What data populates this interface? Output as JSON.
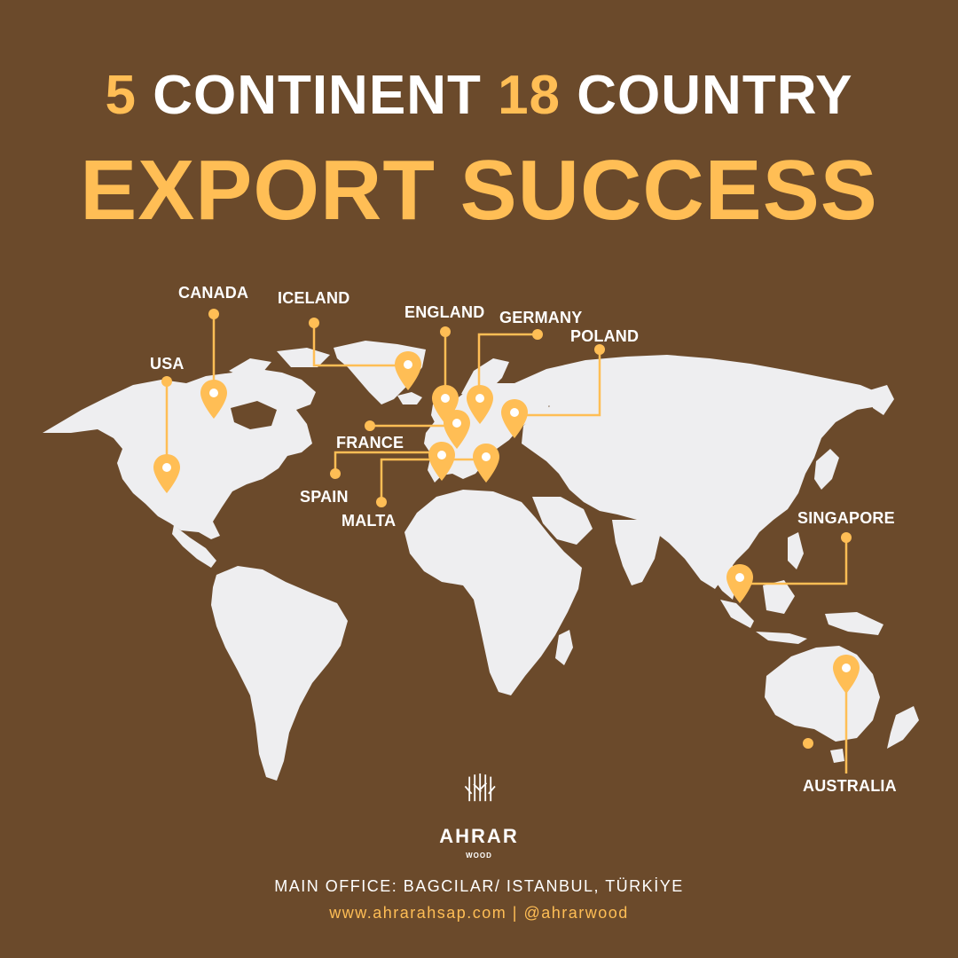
{
  "headline": {
    "num1": "5",
    "word1": "CONTINENT",
    "num2": "18",
    "word2": "COUNTRY"
  },
  "subheadline": "EXPORT SUCCESS",
  "countries": [
    "USA",
    "CANADA",
    "ICELAND",
    "ENGLAND",
    "GERMANY",
    "POLAND",
    "FRANCE",
    "SPAIN",
    "MALTA",
    "SINGAPORE",
    "AUSTRALIA"
  ],
  "brand": {
    "name": "AHRAR",
    "sub": "WOOD"
  },
  "footer": {
    "office": "MAIN OFFICE: BAGCILAR/ ISTANBUL, TÜRKİYE",
    "contact": "www.ahrarahsap.com | @ahrarwood"
  },
  "colors": {
    "background": "#6b4a2b",
    "accent": "#ffbe55",
    "land": "#eeeef0",
    "text": "#ffffff"
  },
  "icons": {
    "marker": "map-pin-icon",
    "logo": "tree-trunk-logo"
  }
}
